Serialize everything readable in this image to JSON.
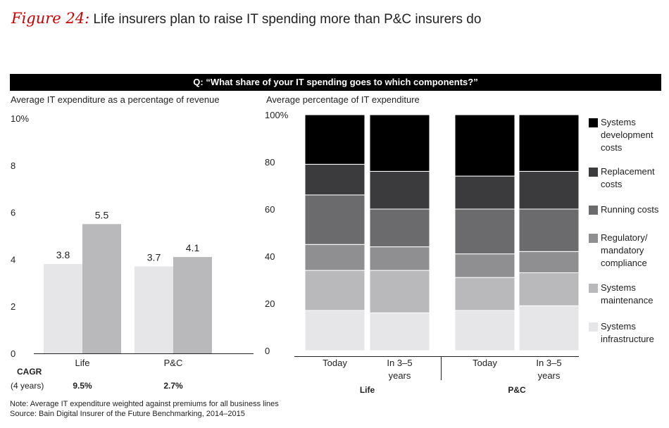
{
  "figure": {
    "label": "Figure 24:",
    "title": "Life insurers plan to raise IT spending more than P&C insurers do"
  },
  "question": "Q: “What share of your IT spending goes to which components?”",
  "left_panel": {
    "subtitle": "Average IT expenditure as a percentage of revenue"
  },
  "right_panel": {
    "subtitle": "Average percentage of IT expenditure"
  },
  "cagr": {
    "label": "CAGR",
    "sublabel": "(4 years)",
    "values": [
      "9.5%",
      "2.7%"
    ]
  },
  "notes": [
    "Note: Average IT expenditure weighted against premiums for all business lines",
    "Source: Bain Digital Insurer of the Future Benchmarking, 2014–2015"
  ],
  "chart_data": [
    {
      "type": "bar",
      "title": "Average IT expenditure as a percentage of revenue",
      "categories": [
        "Life",
        "P&C"
      ],
      "series": [
        {
          "values": [
            3.8,
            3.7
          ],
          "color": "#e6e6e8"
        },
        {
          "values": [
            5.5,
            4.1
          ],
          "color": "#b9b9bb"
        }
      ],
      "data_labels": [
        [
          "3.8",
          "5.5"
        ],
        [
          "3.7",
          "4.1"
        ]
      ],
      "ylim": [
        0,
        10
      ],
      "yticks": [
        "0",
        "2",
        "4",
        "6",
        "8",
        "10%"
      ]
    },
    {
      "type": "bar",
      "stacked": true,
      "title": "Average percentage of IT expenditure",
      "groups": [
        "Life",
        "P&C"
      ],
      "categories": [
        {
          "group": "Life",
          "label": [
            "Today"
          ]
        },
        {
          "group": "Life",
          "label": [
            "In 3–5",
            "years"
          ]
        },
        {
          "group": "P&C",
          "label": [
            "Today"
          ]
        },
        {
          "group": "P&C",
          "label": [
            "In 3–5",
            "years"
          ]
        }
      ],
      "series": [
        {
          "name": "Systems infrastructure",
          "label_lines": [
            "Systems",
            "infrastructure"
          ],
          "color": "#e6e6e8",
          "values": [
            17,
            16,
            17,
            19
          ]
        },
        {
          "name": "Systems maintenance",
          "label_lines": [
            "Systems",
            "maintenance"
          ],
          "color": "#b9b9bb",
          "values": [
            17,
            18,
            14,
            14
          ]
        },
        {
          "name": "Regulatory/ mandatory compliance",
          "label_lines": [
            "Regulatory/",
            "mandatory",
            "compliance"
          ],
          "color": "#8f8f91",
          "values": [
            11,
            10,
            10,
            9
          ]
        },
        {
          "name": "Running costs",
          "label_lines": [
            "Running costs"
          ],
          "color": "#6b6b6d",
          "values": [
            21,
            16,
            19,
            18
          ]
        },
        {
          "name": "Replacement costs",
          "label_lines": [
            "Replacement",
            "costs"
          ],
          "color": "#3b3b3d",
          "values": [
            13,
            16,
            14,
            16
          ]
        },
        {
          "name": "Systems development costs",
          "label_lines": [
            "Systems",
            "development",
            "costs"
          ],
          "color": "#000000",
          "values": [
            21,
            24,
            26,
            24
          ]
        }
      ],
      "ylim": [
        0,
        100
      ],
      "yticks": [
        "0",
        "20",
        "40",
        "60",
        "80",
        "100%"
      ],
      "legend_position": "right"
    }
  ]
}
